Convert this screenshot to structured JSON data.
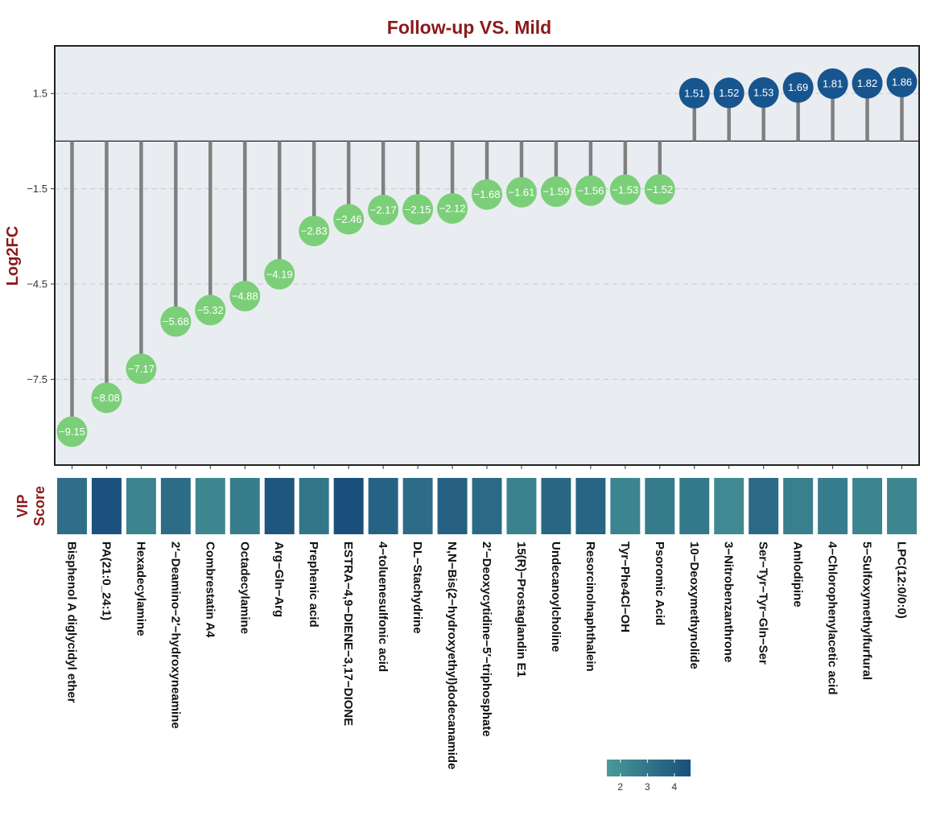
{
  "chart_data": {
    "type": "lollipop",
    "title": "Follow-up VS. Mild",
    "ylabel": "Log2FC",
    "vip_label_line1": "VIP",
    "vip_label_line2": "Score",
    "ylim": [
      -10.2,
      3.0
    ],
    "yticks": [
      1.5,
      -1.5,
      -4.5,
      -7.5
    ],
    "ytick_labels": [
      "1.5",
      "−1.5",
      "−4.5",
      "−7.5"
    ],
    "grid": true,
    "colors": {
      "positive": "#17558f",
      "negative": "#7ccf79",
      "stem": "#808080",
      "panel_bg": "#e9edf1",
      "grid": "#c6c9cc",
      "vip_low": "#4a9a98",
      "vip_high": "#1a4f7c"
    },
    "categories": [
      "Bisphenol A diglycidyl ether",
      "PA(21:0_24:1)",
      "Hexadecylamine",
      "2′−Deamino−2′−hydroxyneamine",
      "Combrestatin A4",
      "Octadecylamine",
      "Arg−Gln−Arg",
      "Prephenic acid",
      "ESTRA−4,9−DIENE−3,17−DIONE",
      "4−toluenesulfonic acid",
      "DL−Stachydrine",
      "N,N−Bis(2−hydroxyethyl)dodecanamide",
      "2′−Deoxycytidine−5′−triphosphate",
      "15(R)−Prostaglandin E1",
      "Undecanoylcholine",
      "Resorcinolnaphthalein",
      "Tyr−Phe4Cl−OH",
      "Psoromic Acid",
      "10−Deoxymethynolide",
      "3−Nitrobenzanthrone",
      "Ser−Tyr−Tyr−Gln−Ser",
      "Amlodipine",
      "4−Chlorophenylacetic acid",
      "5−Sulfoxymethylfurfural",
      "LPC(12:0/0:0)"
    ],
    "values": [
      -9.15,
      -8.08,
      -7.17,
      -5.68,
      -5.32,
      -4.88,
      -4.19,
      -2.83,
      -2.46,
      -2.17,
      -2.15,
      -2.12,
      -1.68,
      -1.61,
      -1.59,
      -1.56,
      -1.53,
      -1.52,
      1.51,
      1.52,
      1.53,
      1.69,
      1.81,
      1.82,
      1.86
    ],
    "value_labels": [
      "−9.15",
      "−8.08",
      "−7.17",
      "−5.68",
      "−5.32",
      "−4.88",
      "−4.19",
      "−2.83",
      "−2.46",
      "−2.17",
      "−2.15",
      "−2.12",
      "−1.68",
      "−1.61",
      "−1.59",
      "−1.56",
      "−1.53",
      "−1.52",
      "1.51",
      "1.52",
      "1.53",
      "1.69",
      "1.81",
      "1.82",
      "1.86"
    ],
    "vip": [
      3.3,
      4.5,
      2.4,
      3.4,
      2.3,
      2.7,
      4.3,
      3.0,
      4.6,
      3.8,
      3.4,
      3.9,
      3.5,
      2.5,
      3.6,
      3.7,
      2.4,
      2.8,
      2.9,
      2.2,
      3.5,
      2.6,
      2.7,
      2.4,
      2.3
    ],
    "vip_colorbar": {
      "min": 1.5,
      "max": 4.6,
      "ticks": [
        2,
        3,
        4
      ],
      "tick_labels": [
        "2",
        "3",
        "4"
      ]
    }
  }
}
